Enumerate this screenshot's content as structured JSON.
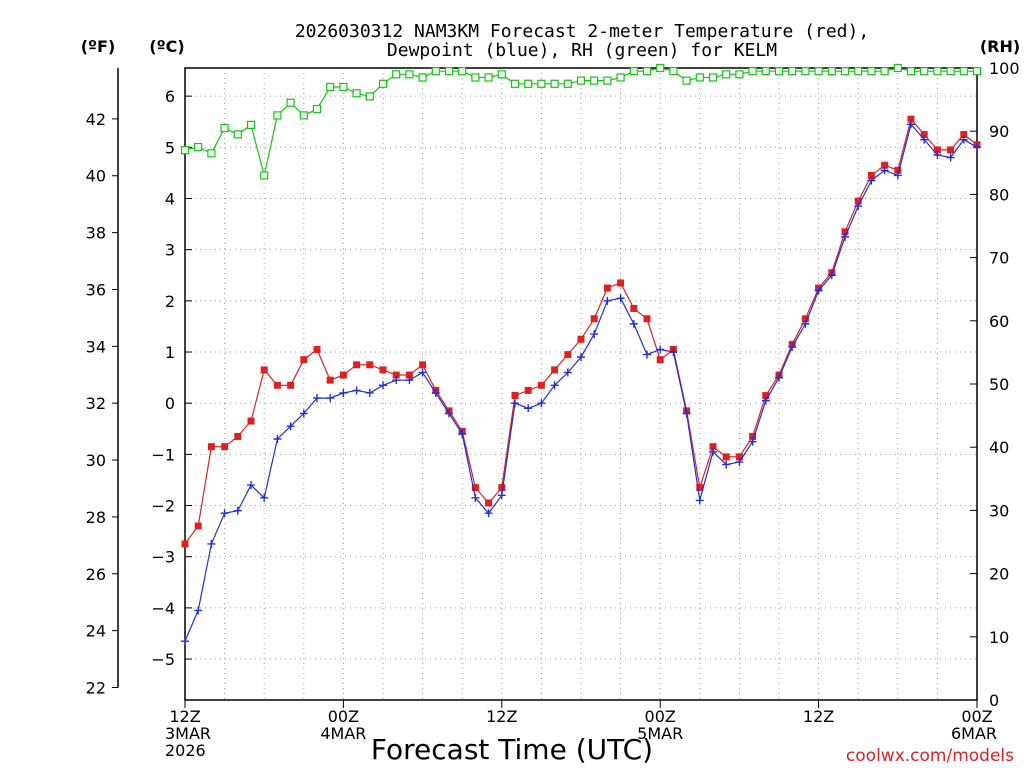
{
  "chart_data": {
    "type": "line",
    "title_line1": "2026030312 NAM3KM Forecast 2-meter Temperature (red),",
    "title_line2": "Dewpoint (blue), RH (green) for KELM",
    "xlabel": "Forecast Time (UTC)",
    "credit": "coolwx.com/models",
    "unit_labels": {
      "f": "(ºF)",
      "c": "(ºC)",
      "rh": "(RH)"
    },
    "x_range_hours": [
      0,
      60
    ],
    "celsius_axis": {
      "min": -5.8,
      "max": 6.55,
      "ticks": [
        "-5",
        "-4",
        "-3",
        "-2",
        "-1",
        "0",
        "1",
        "2",
        "3",
        "4",
        "5",
        "6"
      ]
    },
    "fahrenheit_axis": {
      "ticks": [
        "22",
        "24",
        "26",
        "28",
        "30",
        "32",
        "34",
        "36",
        "38",
        "40",
        "42"
      ]
    },
    "rh_axis": {
      "min": 0,
      "max": 100,
      "ticks": [
        "0",
        "10",
        "20",
        "30",
        "40",
        "50",
        "60",
        "70",
        "80",
        "90",
        "100"
      ]
    },
    "x_ticks": [
      {
        "hour": 0,
        "lines": [
          "12Z",
          "3MAR",
          "2026"
        ]
      },
      {
        "hour": 12,
        "lines": [
          "00Z",
          "4MAR"
        ]
      },
      {
        "hour": 24,
        "lines": [
          "12Z"
        ]
      },
      {
        "hour": 36,
        "lines": [
          "00Z",
          "5MAR"
        ]
      },
      {
        "hour": 48,
        "lines": [
          "12Z"
        ]
      },
      {
        "hour": 60,
        "lines": [
          "00Z",
          "6MAR"
        ]
      }
    ],
    "series": [
      {
        "name": "Temperature",
        "axis": "celsius",
        "color": "#e02020",
        "marker": "filled-square",
        "x": [
          0,
          1,
          2,
          3,
          4,
          5,
          6,
          7,
          8,
          9,
          10,
          11,
          12,
          13,
          14,
          15,
          16,
          17,
          18,
          19,
          20,
          21,
          22,
          23,
          24,
          25,
          26,
          27,
          28,
          29,
          30,
          31,
          32,
          33,
          34,
          35,
          36,
          37,
          38,
          39,
          40,
          41,
          42,
          43,
          44,
          45,
          46,
          47,
          48,
          49,
          50,
          51,
          52,
          53,
          54,
          55,
          56,
          57,
          58,
          59,
          60
        ],
        "values": [
          -2.75,
          -2.4,
          -0.85,
          -0.85,
          -0.65,
          -0.35,
          0.65,
          0.35,
          0.35,
          0.85,
          1.05,
          0.45,
          0.55,
          0.75,
          0.75,
          0.65,
          0.55,
          0.55,
          0.75,
          0.25,
          -0.15,
          -0.55,
          -1.65,
          -1.95,
          -1.65,
          0.15,
          0.25,
          0.35,
          0.65,
          0.95,
          1.25,
          1.65,
          2.25,
          2.35,
          1.85,
          1.65,
          0.85,
          1.05,
          -0.15,
          -1.65,
          -0.85,
          -1.05,
          -1.05,
          -0.65,
          0.15,
          0.55,
          1.15,
          1.65,
          2.25,
          2.55,
          3.35,
          3.95,
          4.45,
          4.65,
          4.55,
          5.55,
          5.25,
          4.95,
          4.95,
          5.25,
          5.05
        ]
      },
      {
        "name": "Dewpoint",
        "axis": "celsius",
        "color": "#2030d8",
        "marker": "plus",
        "x": [
          0,
          1,
          2,
          3,
          4,
          5,
          6,
          7,
          8,
          9,
          10,
          11,
          12,
          13,
          14,
          15,
          16,
          17,
          18,
          19,
          20,
          21,
          22,
          23,
          24,
          25,
          26,
          27,
          28,
          29,
          30,
          31,
          32,
          33,
          34,
          35,
          36,
          37,
          38,
          39,
          40,
          41,
          42,
          43,
          44,
          45,
          46,
          47,
          48,
          49,
          50,
          51,
          52,
          53,
          54,
          55,
          56,
          57,
          58,
          59,
          60
        ],
        "values": [
          -4.65,
          -4.05,
          -2.75,
          -2.15,
          -2.1,
          -1.6,
          -1.85,
          -0.7,
          -0.45,
          -0.2,
          0.1,
          0.1,
          0.2,
          0.25,
          0.2,
          0.35,
          0.45,
          0.45,
          0.6,
          0.2,
          -0.2,
          -0.6,
          -1.85,
          -2.15,
          -1.8,
          0.0,
          -0.1,
          0.0,
          0.35,
          0.6,
          0.9,
          1.35,
          2.0,
          2.05,
          1.55,
          0.95,
          1.05,
          1.0,
          -0.2,
          -1.9,
          -0.95,
          -1.2,
          -1.15,
          -0.75,
          0.05,
          0.5,
          1.1,
          1.55,
          2.2,
          2.5,
          3.25,
          3.85,
          4.35,
          4.55,
          4.45,
          5.45,
          5.15,
          4.85,
          4.8,
          5.15,
          5.0
        ]
      },
      {
        "name": "RH",
        "axis": "rh",
        "color": "#10c810",
        "marker": "open-square",
        "x": [
          0,
          1,
          2,
          3,
          4,
          5,
          6,
          7,
          8,
          9,
          10,
          11,
          12,
          13,
          14,
          15,
          16,
          17,
          18,
          19,
          20,
          21,
          22,
          23,
          24,
          25,
          26,
          27,
          28,
          29,
          30,
          31,
          32,
          33,
          34,
          35,
          36,
          37,
          38,
          39,
          40,
          41,
          42,
          43,
          44,
          45,
          46,
          47,
          48,
          49,
          50,
          51,
          52,
          53,
          54,
          55,
          56,
          57,
          58,
          59,
          60
        ],
        "values": [
          87,
          87.5,
          86.5,
          90.5,
          89.5,
          91,
          83,
          92.5,
          94.5,
          92.5,
          93.5,
          97,
          97,
          96,
          95.5,
          97.5,
          99,
          99,
          98.5,
          99.5,
          99.5,
          99.5,
          98.5,
          98.5,
          99,
          97.5,
          97.5,
          97.5,
          97.5,
          97.5,
          98,
          98,
          98,
          98.5,
          99.5,
          99.5,
          100,
          99.5,
          98,
          98.5,
          98.5,
          99,
          99,
          99.5,
          99.5,
          99.5,
          99.5,
          99.5,
          99.5,
          99.5,
          99.5,
          99.5,
          99.5,
          99.5,
          100,
          99.5,
          99.5,
          99.5,
          99.5,
          99.5,
          99.5
        ]
      }
    ]
  }
}
